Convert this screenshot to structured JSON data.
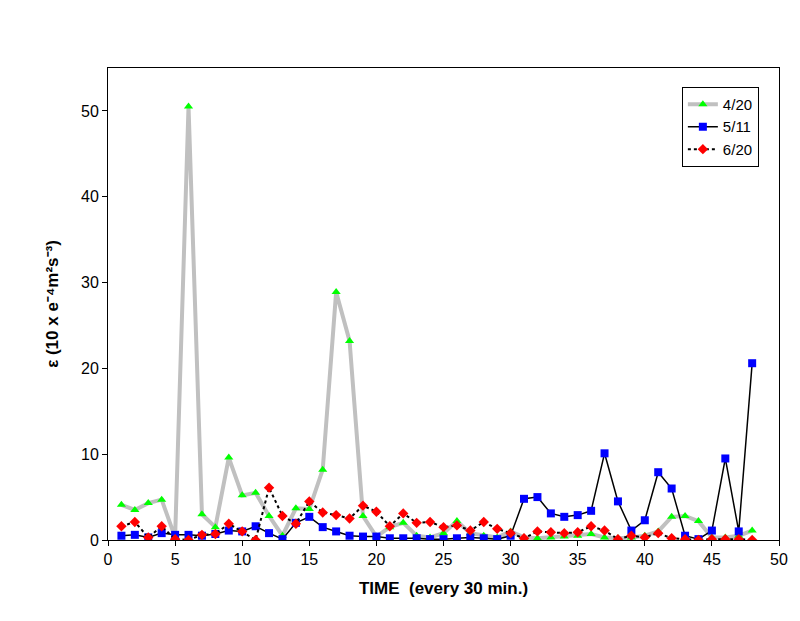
{
  "chart_data": {
    "type": "line",
    "x_label": "TIME  (every 30 min.)",
    "y_label": "ε (10 x e⁻⁴m²s⁻³)",
    "x": [
      1,
      2,
      3,
      4,
      5,
      6,
      7,
      8,
      9,
      10,
      11,
      12,
      13,
      14,
      15,
      16,
      17,
      18,
      19,
      20,
      21,
      22,
      23,
      24,
      25,
      26,
      27,
      28,
      29,
      30,
      31,
      32,
      33,
      34,
      35,
      36,
      37,
      38,
      39,
      40,
      41,
      42,
      43,
      44,
      45,
      46,
      47,
      48
    ],
    "series": [
      {
        "name": "4/20",
        "color": "#00ff00",
        "marker": "triangle-up",
        "line_style": "solid",
        "values": [
          4.1,
          3.5,
          4.3,
          4.7,
          0.3,
          50.5,
          3.0,
          1.5,
          9.6,
          5.2,
          5.5,
          2.8,
          0.5,
          3.7,
          3.6,
          8.2,
          28.9,
          23.2,
          2.8,
          0.4,
          1.5,
          2.0,
          0.5,
          0.3,
          0.8,
          2.2,
          0.8,
          0.5,
          0.3,
          1.0,
          0.3,
          0.2,
          0.3,
          0.4,
          0.5,
          0.7,
          0.3,
          0.2,
          0.3,
          0.5,
          1.0,
          2.7,
          2.8,
          2.2,
          0.3,
          0.3,
          0.5,
          1.1
        ]
      },
      {
        "name": "5/11",
        "color": "#0000ff",
        "marker": "square",
        "line_style": "solid",
        "values": [
          0.5,
          0.6,
          0.3,
          0.8,
          0.6,
          0.6,
          0.5,
          0.7,
          1.1,
          1.0,
          1.6,
          0.8,
          0.1,
          2.0,
          2.7,
          1.5,
          1.0,
          0.5,
          0.4,
          0.4,
          0.2,
          0.2,
          0.2,
          0.1,
          0.1,
          0.2,
          0.3,
          0.2,
          0.1,
          0.5,
          4.8,
          5.0,
          3.1,
          2.7,
          2.9,
          3.4,
          10.1,
          4.5,
          1.1,
          2.3,
          7.9,
          6.0,
          0.5,
          0.1,
          1.1,
          9.5,
          1.0,
          20.6
        ]
      },
      {
        "name": "6/20",
        "color": "#ff0000",
        "marker": "diamond",
        "line_style": "dotted",
        "values": [
          1.6,
          2.1,
          0.3,
          1.6,
          0.1,
          0.0,
          0.6,
          0.7,
          1.9,
          1.0,
          0.0,
          6.1,
          2.8,
          1.9,
          4.5,
          3.2,
          2.9,
          2.5,
          4.0,
          3.3,
          1.6,
          3.1,
          2.0,
          2.1,
          1.5,
          1.7,
          1.1,
          2.1,
          1.3,
          0.8,
          0.2,
          1.0,
          0.9,
          0.8,
          0.9,
          1.6,
          1.1,
          0.1,
          0.5,
          0.3,
          0.8,
          0.2,
          0.1,
          0.0,
          0.1,
          0.1,
          0.1,
          0.0
        ]
      }
    ],
    "xlim": [
      0,
      50
    ],
    "xticks": [
      0,
      5,
      10,
      15,
      20,
      25,
      30,
      35,
      40,
      45,
      50
    ],
    "ylim": [
      0,
      55
    ],
    "yticks": [
      0,
      10,
      20,
      30,
      40,
      50
    ],
    "grid": false,
    "legend": "upper right"
  }
}
